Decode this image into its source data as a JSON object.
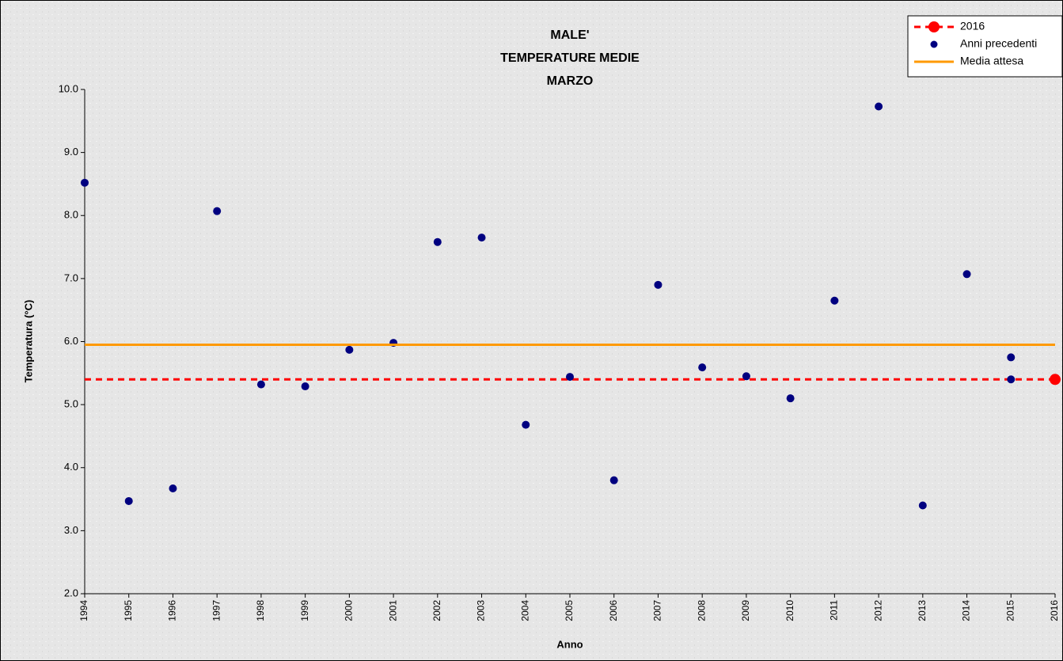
{
  "chart_data": {
    "type": "scatter",
    "title": [
      "MALE'",
      "TEMPERATURE MEDIE",
      "MARZO"
    ],
    "x_label": "Anno",
    "y_label": "Temperatura (°C)",
    "xlim": [
      1994,
      2016
    ],
    "xticks": [
      1994,
      1995,
      1996,
      1997,
      1998,
      1999,
      2000,
      2001,
      2002,
      2003,
      2004,
      2005,
      2006,
      2007,
      2008,
      2009,
      2010,
      2011,
      2012,
      2013,
      2014,
      2015,
      2016
    ],
    "ylim": [
      2.0,
      10.0
    ],
    "yticks": [
      {
        "value": 2,
        "label": "2.0"
      },
      {
        "value": 3,
        "label": "3.0"
      },
      {
        "value": 4,
        "label": "4.0"
      },
      {
        "value": 5,
        "label": "5.0"
      },
      {
        "value": 6,
        "label": "6.0"
      },
      {
        "value": 7,
        "label": "7.0"
      },
      {
        "value": 8,
        "label": "8.0"
      },
      {
        "value": 9,
        "label": "9.0"
      },
      {
        "value": 10,
        "label": "10.0"
      }
    ],
    "legend": "top-right",
    "series": [
      {
        "name": "2016",
        "color": "#ff0000",
        "style": "dashed",
        "x": [
          1994,
          2016
        ],
        "values": [
          5.4,
          5.4
        ]
      },
      {
        "name": "Anni precedenti",
        "color": "#000080",
        "style": "points",
        "x": [
          1994,
          1995,
          1996,
          1997,
          1998,
          1999,
          2000,
          2001,
          2002,
          2003,
          2004,
          2005,
          2006,
          2007,
          2008,
          2009,
          2010,
          2011,
          2012,
          2013,
          2014,
          2015,
          2015
        ],
        "values": [
          8.52,
          3.47,
          3.67,
          8.07,
          5.32,
          5.29,
          5.87,
          5.98,
          7.58,
          7.65,
          4.68,
          5.44,
          3.8,
          6.9,
          5.59,
          5.45,
          5.1,
          6.65,
          9.73,
          3.4,
          7.07,
          5.75,
          5.4
        ]
      },
      {
        "name": "Media attesa",
        "color": "#ff9900",
        "style": "solid",
        "x": [
          1994,
          2016
        ],
        "values": [
          5.95,
          5.95
        ]
      }
    ]
  }
}
